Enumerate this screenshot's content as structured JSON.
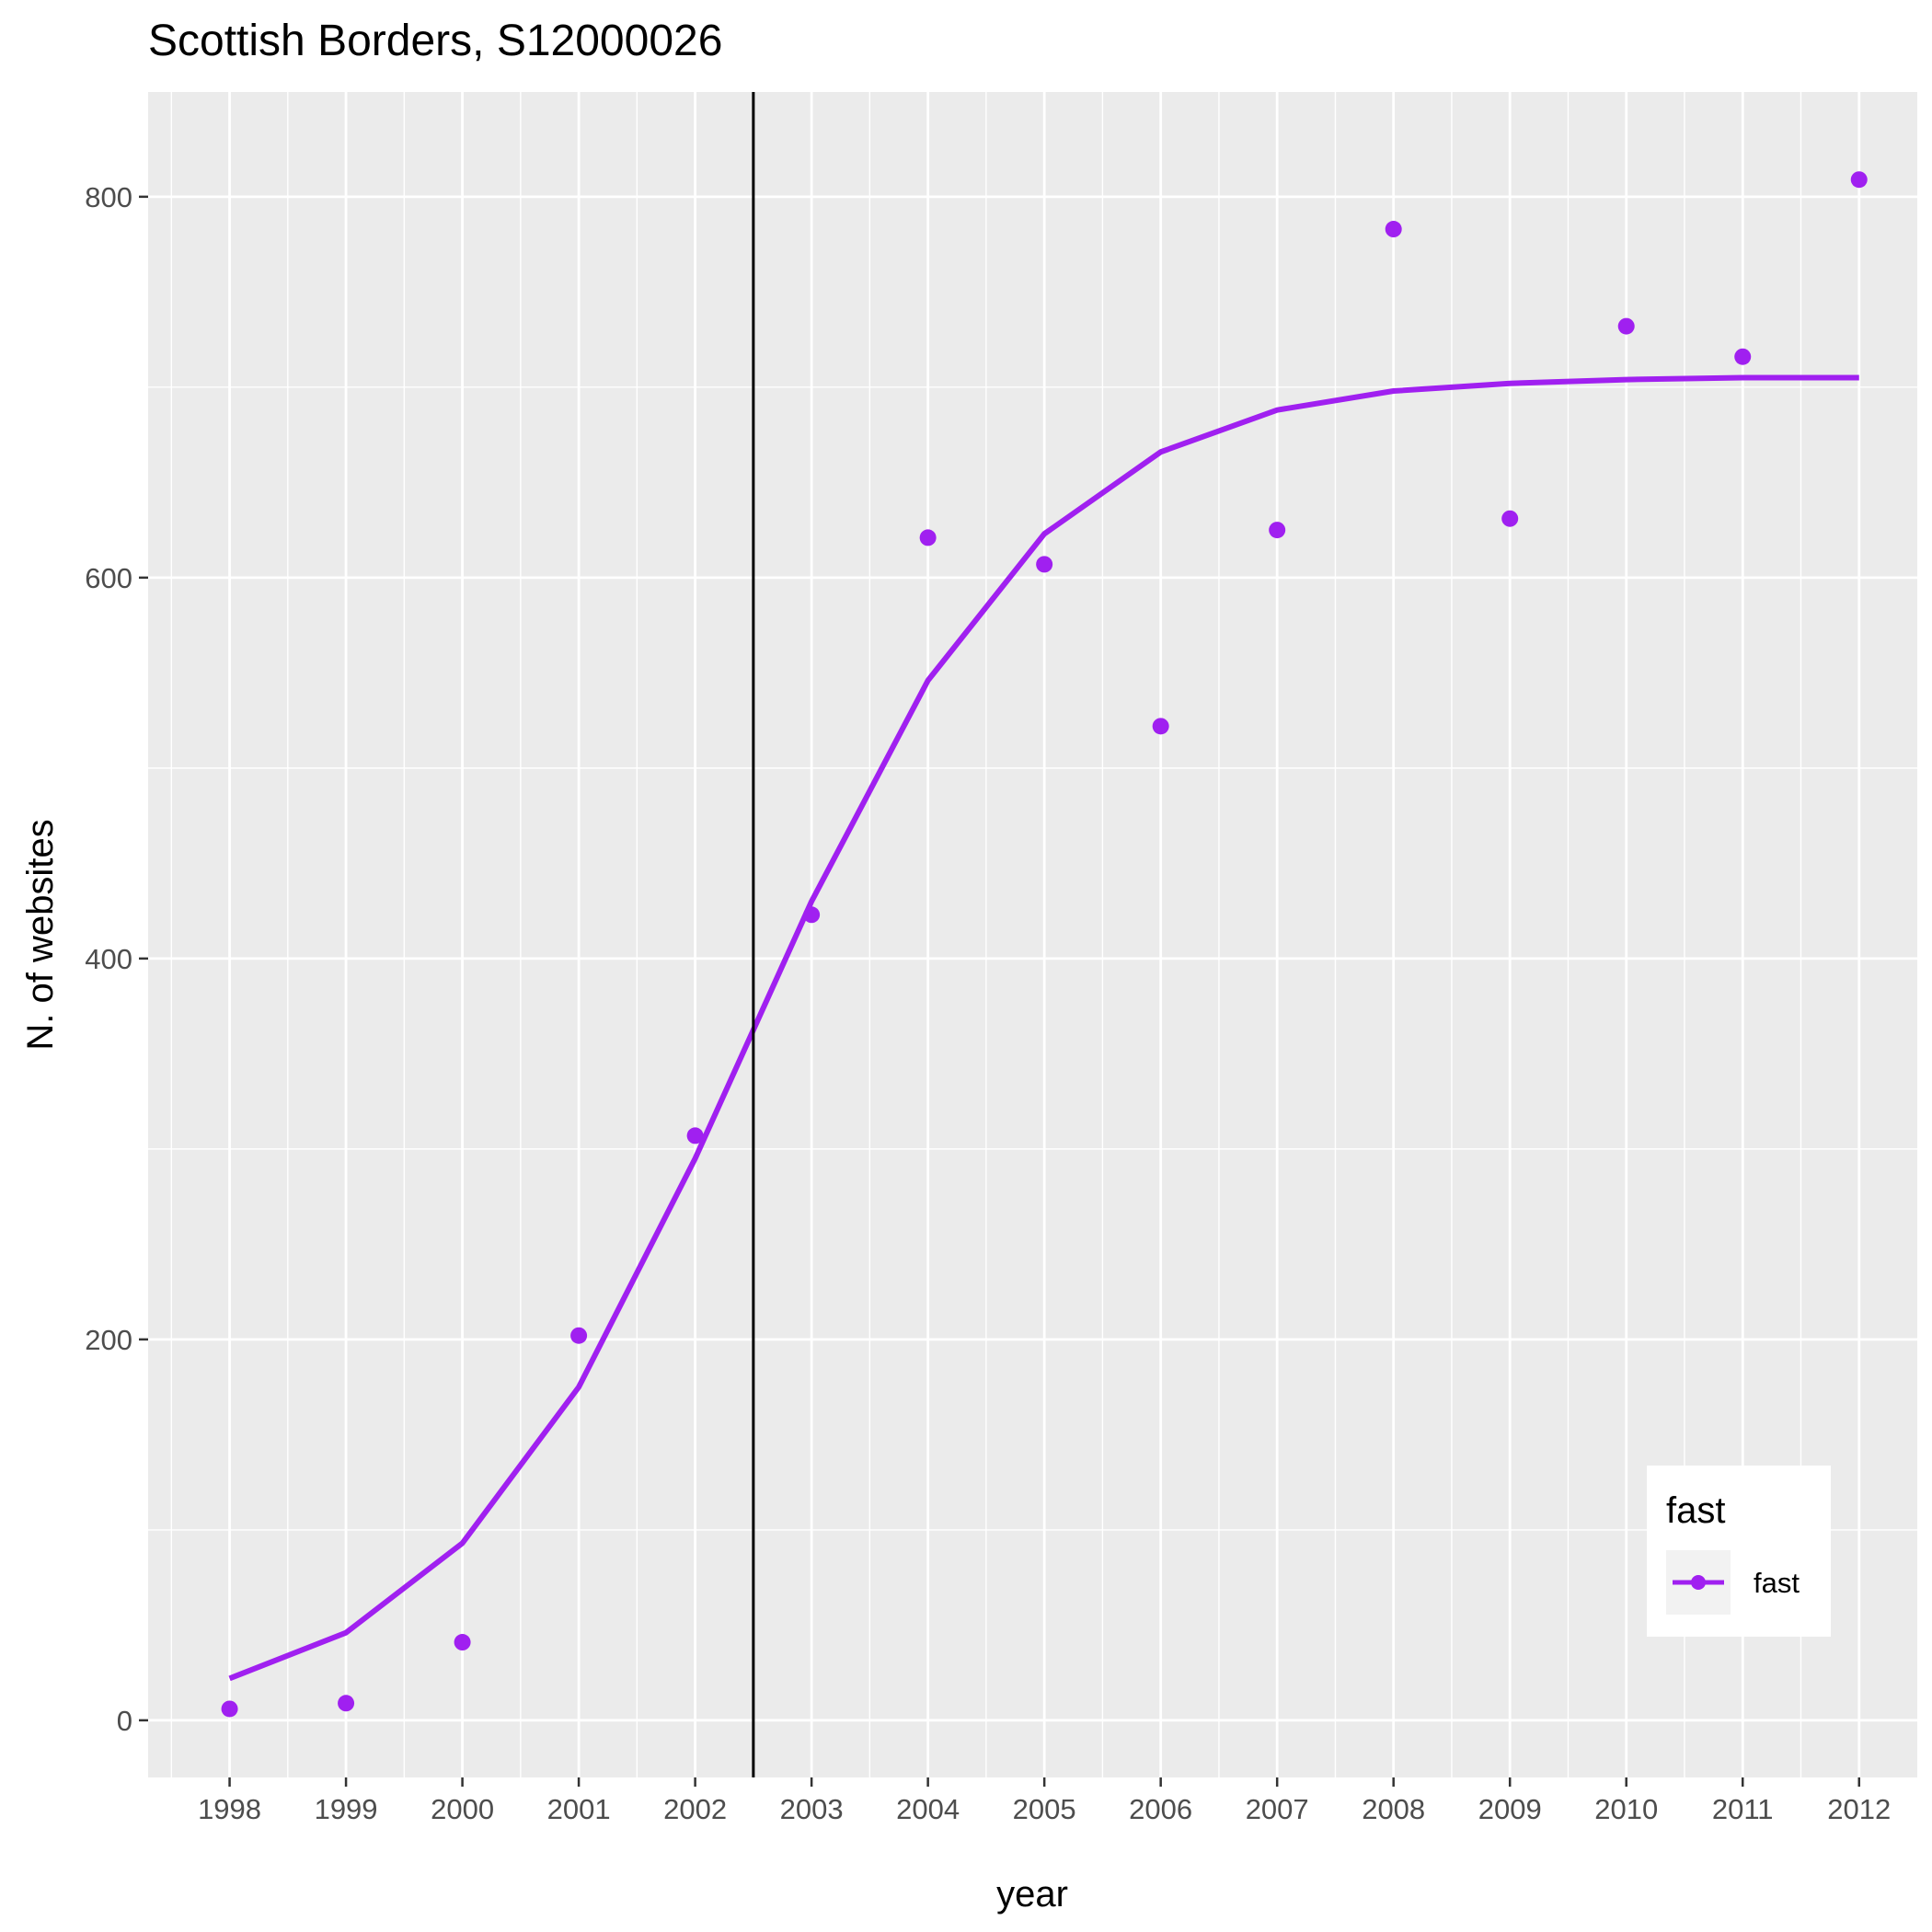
{
  "chart_data": {
    "type": "line",
    "title": "Scottish Borders, S12000026",
    "xlabel": "year",
    "ylabel": "N. of websites",
    "xlim": [
      1997.3,
      2012.5
    ],
    "ylim": [
      -30,
      855
    ],
    "x_ticks": [
      1998,
      1999,
      2000,
      2001,
      2002,
      2003,
      2004,
      2005,
      2006,
      2007,
      2008,
      2009,
      2010,
      2011,
      2012
    ],
    "x_tick_labels": [
      "1998",
      "1999",
      "2000",
      "2001",
      "2002",
      "2003",
      "2004",
      "2005",
      "2006",
      "2007",
      "2008",
      "2009",
      "2010",
      "2011",
      "2012"
    ],
    "y_ticks": [
      0,
      200,
      400,
      600,
      800
    ],
    "y_tick_labels": [
      "0",
      "200",
      "400",
      "600",
      "800"
    ],
    "grid": true,
    "vline_x": 2002.5,
    "colors": {
      "series": "#a020f0",
      "panel": "#ebebeb",
      "grid": "#ffffff",
      "vline": "#000000",
      "legend_key_bg": "#f2f2f2"
    },
    "series": [
      {
        "name": "fast",
        "kind": "points",
        "x": [
          1998,
          1999,
          2000,
          2001,
          2002,
          2003,
          2004,
          2005,
          2006,
          2007,
          2008,
          2009,
          2010,
          2011,
          2012
        ],
        "values": [
          6,
          9,
          41,
          202,
          307,
          423,
          621,
          607,
          522,
          625,
          783,
          631,
          732,
          716,
          809
        ]
      },
      {
        "name": "fast",
        "kind": "line",
        "x": [
          1998,
          1999,
          2000,
          2001,
          2002,
          2003,
          2004,
          2005,
          2006,
          2007,
          2008,
          2009,
          2010,
          2011,
          2012
        ],
        "values": [
          22,
          46,
          93,
          175,
          295,
          430,
          546,
          623,
          666,
          688,
          698,
          702,
          704,
          705,
          705
        ]
      }
    ],
    "legend": {
      "title": "fast",
      "label": "fast",
      "position": "bottom-right"
    }
  }
}
